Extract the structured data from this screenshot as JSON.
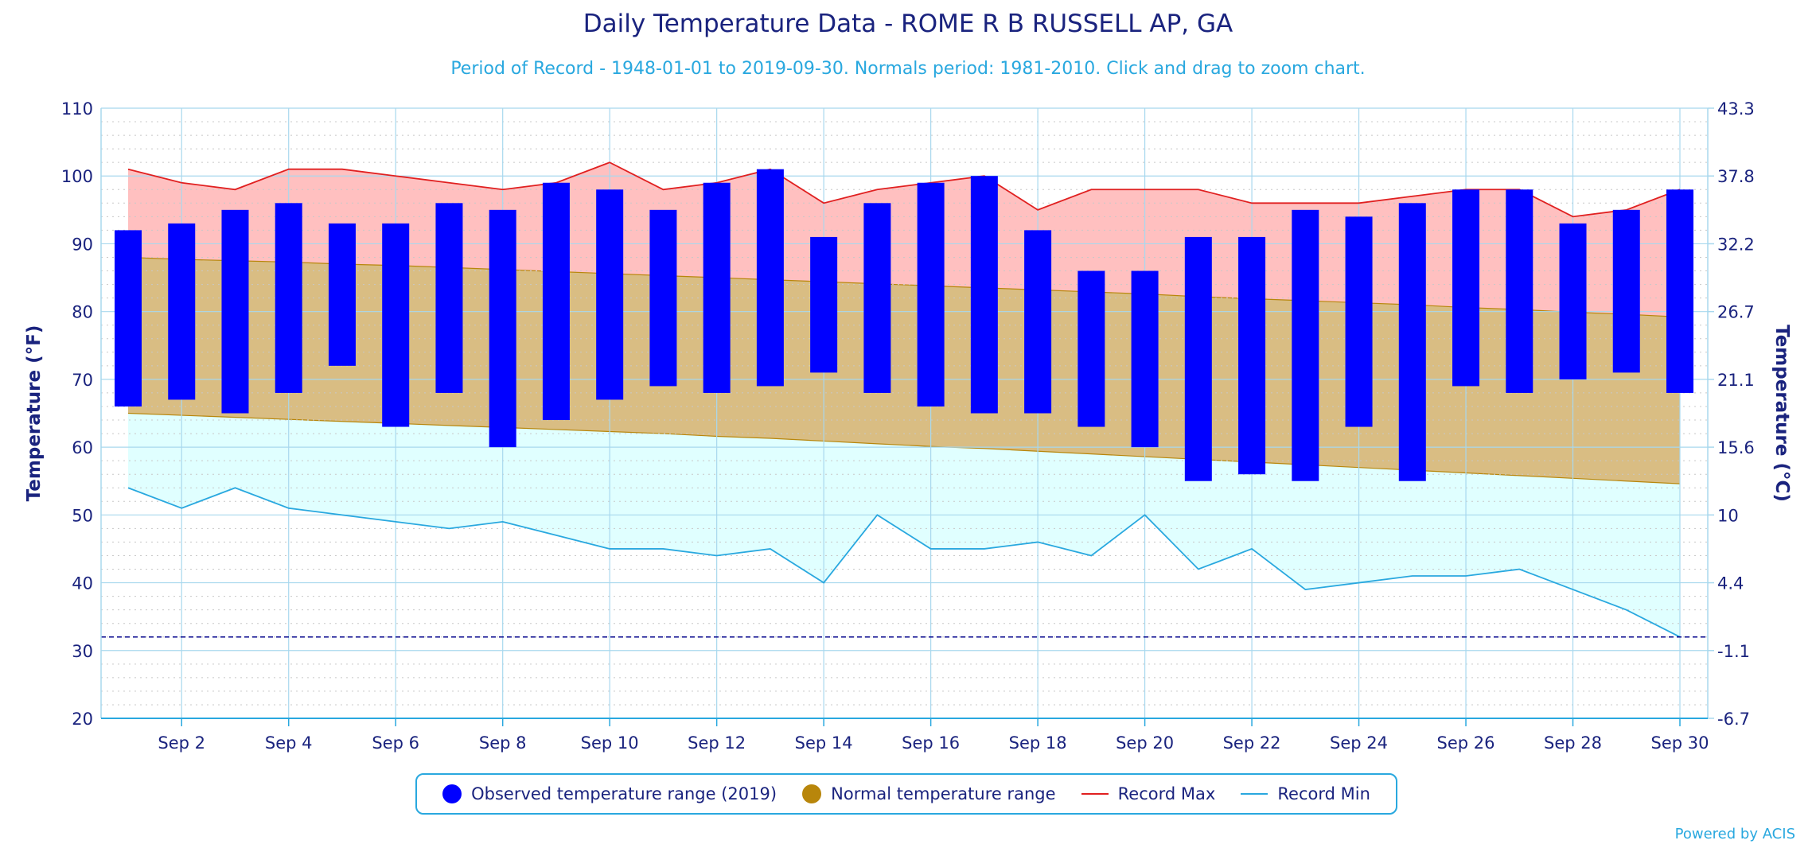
{
  "title": "Daily Temperature Data - ROME R B RUSSELL AP, GA",
  "subtitle": "Period of Record - 1948-01-01 to 2019-09-30. Normals period: 1981-2010. Click and drag to zoom chart.",
  "credit": "Powered by ACIS",
  "colors": {
    "observed": "#0000ff",
    "normal_fill": "#d9bd83",
    "normal_line": "#b8860b",
    "record_max_fill": "#ffc0c0",
    "record_max_line": "#e02020",
    "record_min_fill": "#e0ffff",
    "record_min_line": "#29a8df",
    "axis_text": "#1a237e",
    "freezing_line": "#00008b"
  },
  "legend": {
    "observed": "Observed temperature range (2019)",
    "normal": "Normal temperature range",
    "record_max": "Record Max",
    "record_min": "Record Min"
  },
  "chart_data": {
    "type": "bar",
    "title": "Daily Temperature Data - ROME R B RUSSELL AP, GA",
    "xlabel": "",
    "ylabel": "Temperature (°F)",
    "ylabel_right": "Temperature (°C)",
    "ylim": [
      20,
      110
    ],
    "yticks": [
      20,
      30,
      40,
      50,
      60,
      70,
      80,
      90,
      100,
      110
    ],
    "yticks_right": [
      "-6.7",
      "-1.1",
      "4.4",
      "10",
      "15.6",
      "21.1",
      "26.7",
      "32.2",
      "37.8",
      "43.3"
    ],
    "days": [
      1,
      2,
      3,
      4,
      5,
      6,
      7,
      8,
      9,
      10,
      11,
      12,
      13,
      14,
      15,
      16,
      17,
      18,
      19,
      20,
      21,
      22,
      23,
      24,
      25,
      26,
      27,
      28,
      29,
      30
    ],
    "xtick_labels": [
      "Sep 2",
      "Sep 4",
      "Sep 6",
      "Sep 8",
      "Sep 10",
      "Sep 12",
      "Sep 14",
      "Sep 16",
      "Sep 18",
      "Sep 20",
      "Sep 22",
      "Sep 24",
      "Sep 26",
      "Sep 28",
      "Sep 30"
    ],
    "freezing_line": 32,
    "grid": true,
    "legend_position": "bottom",
    "series": [
      {
        "name": "Observed temperature range (2019)",
        "kind": "range-bar",
        "low": [
          66,
          67,
          65,
          68,
          72,
          63,
          68,
          60,
          64,
          67,
          69,
          68,
          69,
          71,
          68,
          66,
          65,
          65,
          63,
          60,
          55,
          56,
          55,
          63,
          55,
          69,
          68,
          70,
          71,
          68
        ],
        "high": [
          92,
          93,
          95,
          96,
          93,
          93,
          96,
          95,
          99,
          98,
          95,
          99,
          101,
          91,
          96,
          99,
          100,
          92,
          86,
          86,
          91,
          91,
          95,
          94,
          96,
          98,
          98,
          93,
          95,
          98
        ]
      },
      {
        "name": "Normal temperature range",
        "kind": "range-area",
        "low": [
          65,
          64.7,
          64.4,
          64.1,
          63.8,
          63.5,
          63.2,
          62.9,
          62.6,
          62.3,
          62,
          61.6,
          61.3,
          60.9,
          60.5,
          60.1,
          59.8,
          59.4,
          59,
          58.6,
          58.2,
          57.8,
          57.4,
          57,
          56.6,
          56.2,
          55.8,
          55.4,
          55,
          54.6
        ],
        "high": [
          88,
          87.7,
          87.5,
          87.3,
          87,
          86.8,
          86.5,
          86.2,
          85.9,
          85.6,
          85.3,
          85,
          84.7,
          84.4,
          84.1,
          83.8,
          83.5,
          83.2,
          82.9,
          82.6,
          82.2,
          81.9,
          81.6,
          81.3,
          81,
          80.6,
          80.3,
          79.9,
          79.6,
          79.2
        ]
      },
      {
        "name": "Record Max",
        "kind": "line",
        "values": [
          101,
          99,
          98,
          101,
          101,
          100,
          99,
          98,
          99,
          102,
          98,
          99,
          101,
          96,
          98,
          99,
          100,
          95,
          98,
          98,
          98,
          96,
          96,
          96,
          97,
          98,
          98,
          94,
          95,
          98
        ]
      },
      {
        "name": "Record Min",
        "kind": "line",
        "values": [
          54,
          51,
          54,
          51,
          50,
          49,
          48,
          49,
          47,
          45,
          45,
          44,
          45,
          40,
          50,
          45,
          45,
          46,
          44,
          50,
          42,
          45,
          39,
          40,
          41,
          41,
          42,
          39,
          36,
          32
        ]
      }
    ]
  }
}
